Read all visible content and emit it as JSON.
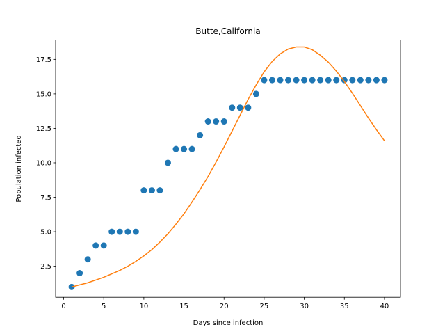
{
  "chart_data": {
    "type": "scatter",
    "title": "Butte,California",
    "xlabel": "Days since infection",
    "ylabel": "Population infected",
    "xlim": [
      -1,
      42
    ],
    "ylim": [
      0.25,
      18.9
    ],
    "xticks": [
      0,
      5,
      10,
      15,
      20,
      25,
      30,
      35,
      40
    ],
    "yticks": [
      2.5,
      5.0,
      7.5,
      10.0,
      12.5,
      15.0,
      17.5
    ],
    "ytick_labels": [
      "2.5",
      "5.0",
      "7.5",
      "10.0",
      "12.5",
      "15.0",
      "17.5"
    ],
    "grid": false,
    "series": [
      {
        "kind": "scatter",
        "color": "#1f77b4",
        "x": [
          1,
          2,
          3,
          4,
          5,
          6,
          7,
          8,
          9,
          10,
          11,
          12,
          13,
          14,
          15,
          16,
          17,
          18,
          19,
          20,
          21,
          22,
          23,
          24,
          25,
          26,
          27,
          28,
          29,
          30,
          31,
          32,
          33,
          34,
          35,
          36,
          37,
          38,
          39,
          40
        ],
        "y": [
          1,
          2,
          3,
          4,
          4,
          5,
          5,
          5,
          5,
          8,
          8,
          8,
          10,
          11,
          11,
          11,
          12,
          13,
          13,
          13,
          14,
          14,
          14,
          15,
          16,
          16,
          16,
          16,
          16,
          16,
          16,
          16,
          16,
          16,
          16,
          16,
          16,
          16,
          16,
          16
        ]
      },
      {
        "kind": "line",
        "color": "#ff7f0e",
        "x": [
          1,
          2,
          3,
          4,
          5,
          6,
          7,
          8,
          9,
          10,
          11,
          12,
          13,
          14,
          15,
          16,
          17,
          18,
          19,
          20,
          21,
          22,
          23,
          24,
          25,
          26,
          27,
          28,
          29,
          30,
          31,
          32,
          33,
          34,
          35,
          36,
          37,
          38,
          39,
          40
        ],
        "y": [
          1.0,
          1.15,
          1.3,
          1.5,
          1.7,
          1.95,
          2.2,
          2.5,
          2.85,
          3.25,
          3.7,
          4.25,
          4.85,
          5.55,
          6.3,
          7.15,
          8.05,
          9.0,
          10.05,
          11.15,
          12.3,
          13.45,
          14.6,
          15.65,
          16.6,
          17.35,
          17.9,
          18.25,
          18.4,
          18.4,
          18.2,
          17.8,
          17.3,
          16.65,
          15.9,
          15.05,
          14.15,
          13.25,
          12.4,
          11.6
        ]
      }
    ]
  }
}
